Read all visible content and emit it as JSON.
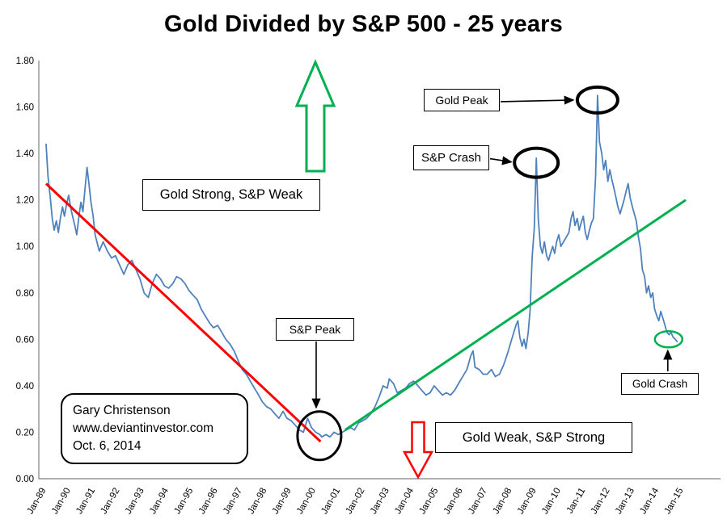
{
  "chart_data": {
    "type": "line",
    "title": "Gold Divided by S&P 500 - 25 years",
    "xlabel": "",
    "ylabel": "",
    "grid": false,
    "legend": "none",
    "y_range": [
      0.0,
      1.8
    ],
    "y_tick_labels": [
      "0.00",
      "0.20",
      "0.40",
      "0.60",
      "0.80",
      "1.00",
      "1.20",
      "1.40",
      "1.60",
      "1.80"
    ],
    "x_tick_labels": [
      "Jan-89",
      "Jan-90",
      "Jan-91",
      "Jan-92",
      "Jan-93",
      "Jan-94",
      "Jan-95",
      "Jan-96",
      "Jan-97",
      "Jan-98",
      "Jan-99",
      "Jan-00",
      "Jan-01",
      "Jan-02",
      "Jan-03",
      "Jan-04",
      "Jan-05",
      "Jan-06",
      "Jan-07",
      "Jan-08",
      "Jan-09",
      "Jan-10",
      "Jan-11",
      "Jan-12",
      "Jan-13",
      "Jan-14",
      "Jan-15"
    ],
    "x_range_years": [
      1989,
      2015
    ],
    "colors": {
      "series": "#4F81BD",
      "down_trend": "#FF0000",
      "up_trend": "#00B050",
      "up_arrow": "#00B050",
      "down_arrow": "#FF0000",
      "annotation": "#000000"
    },
    "series": [
      {
        "name": "Gold / S&P 500 ratio",
        "color": "#4F81BD",
        "points": [
          [
            1989.0,
            1.44
          ],
          [
            1989.08,
            1.3
          ],
          [
            1989.17,
            1.21
          ],
          [
            1989.25,
            1.12
          ],
          [
            1989.33,
            1.07
          ],
          [
            1989.42,
            1.11
          ],
          [
            1989.5,
            1.06
          ],
          [
            1989.58,
            1.12
          ],
          [
            1989.67,
            1.17
          ],
          [
            1989.75,
            1.13
          ],
          [
            1989.83,
            1.18
          ],
          [
            1989.92,
            1.22
          ],
          [
            1990.0,
            1.17
          ],
          [
            1990.08,
            1.13
          ],
          [
            1990.17,
            1.09
          ],
          [
            1990.25,
            1.05
          ],
          [
            1990.33,
            1.12
          ],
          [
            1990.42,
            1.19
          ],
          [
            1990.5,
            1.15
          ],
          [
            1990.58,
            1.24
          ],
          [
            1990.67,
            1.34
          ],
          [
            1990.75,
            1.27
          ],
          [
            1990.83,
            1.19
          ],
          [
            1990.92,
            1.13
          ],
          [
            1991.0,
            1.05
          ],
          [
            1991.17,
            0.98
          ],
          [
            1991.33,
            1.02
          ],
          [
            1991.5,
            0.98
          ],
          [
            1991.67,
            0.95
          ],
          [
            1991.83,
            0.96
          ],
          [
            1992.0,
            0.92
          ],
          [
            1992.17,
            0.88
          ],
          [
            1992.33,
            0.92
          ],
          [
            1992.5,
            0.94
          ],
          [
            1992.67,
            0.9
          ],
          [
            1992.83,
            0.86
          ],
          [
            1993.0,
            0.8
          ],
          [
            1993.17,
            0.78
          ],
          [
            1993.33,
            0.84
          ],
          [
            1993.5,
            0.88
          ],
          [
            1993.67,
            0.86
          ],
          [
            1993.83,
            0.83
          ],
          [
            1994.0,
            0.82
          ],
          [
            1994.17,
            0.84
          ],
          [
            1994.33,
            0.87
          ],
          [
            1994.5,
            0.86
          ],
          [
            1994.67,
            0.84
          ],
          [
            1994.83,
            0.81
          ],
          [
            1995.0,
            0.79
          ],
          [
            1995.17,
            0.77
          ],
          [
            1995.33,
            0.73
          ],
          [
            1995.5,
            0.7
          ],
          [
            1995.67,
            0.67
          ],
          [
            1995.83,
            0.65
          ],
          [
            1996.0,
            0.66
          ],
          [
            1996.17,
            0.63
          ],
          [
            1996.33,
            0.6
          ],
          [
            1996.5,
            0.58
          ],
          [
            1996.67,
            0.55
          ],
          [
            1996.83,
            0.51
          ],
          [
            1997.0,
            0.47
          ],
          [
            1997.17,
            0.45
          ],
          [
            1997.33,
            0.42
          ],
          [
            1997.5,
            0.39
          ],
          [
            1997.67,
            0.36
          ],
          [
            1997.83,
            0.33
          ],
          [
            1998.0,
            0.31
          ],
          [
            1998.17,
            0.3
          ],
          [
            1998.33,
            0.28
          ],
          [
            1998.5,
            0.26
          ],
          [
            1998.67,
            0.29
          ],
          [
            1998.83,
            0.26
          ],
          [
            1999.0,
            0.25
          ],
          [
            1999.17,
            0.23
          ],
          [
            1999.33,
            0.21
          ],
          [
            1999.5,
            0.2
          ],
          [
            1999.67,
            0.26
          ],
          [
            1999.83,
            0.22
          ],
          [
            2000.0,
            0.2
          ],
          [
            2000.17,
            0.19
          ],
          [
            2000.25,
            0.18
          ],
          [
            2000.42,
            0.19
          ],
          [
            2000.58,
            0.18
          ],
          [
            2000.75,
            0.2
          ],
          [
            2000.92,
            0.19
          ],
          [
            2001.08,
            0.2
          ],
          [
            2001.25,
            0.21
          ],
          [
            2001.42,
            0.22
          ],
          [
            2001.58,
            0.21
          ],
          [
            2001.75,
            0.24
          ],
          [
            2001.92,
            0.25
          ],
          [
            2002.08,
            0.26
          ],
          [
            2002.25,
            0.28
          ],
          [
            2002.42,
            0.31
          ],
          [
            2002.58,
            0.35
          ],
          [
            2002.75,
            0.4
          ],
          [
            2002.92,
            0.39
          ],
          [
            2003.0,
            0.43
          ],
          [
            2003.17,
            0.41
          ],
          [
            2003.33,
            0.37
          ],
          [
            2003.5,
            0.38
          ],
          [
            2003.67,
            0.39
          ],
          [
            2003.83,
            0.41
          ],
          [
            2004.0,
            0.42
          ],
          [
            2004.17,
            0.4
          ],
          [
            2004.33,
            0.38
          ],
          [
            2004.5,
            0.36
          ],
          [
            2004.67,
            0.37
          ],
          [
            2004.83,
            0.4
          ],
          [
            2005.0,
            0.38
          ],
          [
            2005.17,
            0.36
          ],
          [
            2005.33,
            0.37
          ],
          [
            2005.5,
            0.36
          ],
          [
            2005.67,
            0.38
          ],
          [
            2005.83,
            0.41
          ],
          [
            2006.0,
            0.44
          ],
          [
            2006.17,
            0.47
          ],
          [
            2006.33,
            0.53
          ],
          [
            2006.42,
            0.55
          ],
          [
            2006.5,
            0.48
          ],
          [
            2006.67,
            0.47
          ],
          [
            2006.83,
            0.45
          ],
          [
            2007.0,
            0.45
          ],
          [
            2007.17,
            0.47
          ],
          [
            2007.33,
            0.44
          ],
          [
            2007.5,
            0.45
          ],
          [
            2007.67,
            0.49
          ],
          [
            2007.83,
            0.54
          ],
          [
            2008.0,
            0.6
          ],
          [
            2008.17,
            0.66
          ],
          [
            2008.25,
            0.68
          ],
          [
            2008.33,
            0.61
          ],
          [
            2008.42,
            0.57
          ],
          [
            2008.5,
            0.6
          ],
          [
            2008.58,
            0.56
          ],
          [
            2008.67,
            0.63
          ],
          [
            2008.75,
            0.73
          ],
          [
            2008.83,
            0.95
          ],
          [
            2008.92,
            1.08
          ],
          [
            2009.0,
            1.38
          ],
          [
            2009.08,
            1.12
          ],
          [
            2009.17,
            1.0
          ],
          [
            2009.25,
            0.97
          ],
          [
            2009.33,
            1.02
          ],
          [
            2009.42,
            0.96
          ],
          [
            2009.5,
            0.94
          ],
          [
            2009.58,
            0.97
          ],
          [
            2009.67,
            1.0
          ],
          [
            2009.75,
            0.97
          ],
          [
            2009.83,
            1.02
          ],
          [
            2009.92,
            1.05
          ],
          [
            2010.0,
            1.0
          ],
          [
            2010.17,
            1.03
          ],
          [
            2010.33,
            1.06
          ],
          [
            2010.42,
            1.12
          ],
          [
            2010.5,
            1.15
          ],
          [
            2010.58,
            1.09
          ],
          [
            2010.67,
            1.12
          ],
          [
            2010.75,
            1.07
          ],
          [
            2010.83,
            1.1
          ],
          [
            2010.92,
            1.13
          ],
          [
            2011.0,
            1.06
          ],
          [
            2011.08,
            1.03
          ],
          [
            2011.17,
            1.07
          ],
          [
            2011.25,
            1.1
          ],
          [
            2011.33,
            1.12
          ],
          [
            2011.42,
            1.3
          ],
          [
            2011.5,
            1.65
          ],
          [
            2011.58,
            1.45
          ],
          [
            2011.67,
            1.4
          ],
          [
            2011.75,
            1.33
          ],
          [
            2011.83,
            1.37
          ],
          [
            2011.92,
            1.28
          ],
          [
            2012.0,
            1.33
          ],
          [
            2012.08,
            1.29
          ],
          [
            2012.17,
            1.25
          ],
          [
            2012.25,
            1.21
          ],
          [
            2012.33,
            1.17
          ],
          [
            2012.42,
            1.14
          ],
          [
            2012.5,
            1.17
          ],
          [
            2012.58,
            1.2
          ],
          [
            2012.67,
            1.24
          ],
          [
            2012.75,
            1.27
          ],
          [
            2012.83,
            1.21
          ],
          [
            2012.92,
            1.17
          ],
          [
            2013.0,
            1.14
          ],
          [
            2013.08,
            1.11
          ],
          [
            2013.17,
            1.04
          ],
          [
            2013.25,
            0.99
          ],
          [
            2013.33,
            0.9
          ],
          [
            2013.42,
            0.87
          ],
          [
            2013.5,
            0.8
          ],
          [
            2013.58,
            0.83
          ],
          [
            2013.67,
            0.78
          ],
          [
            2013.75,
            0.8
          ],
          [
            2013.83,
            0.73
          ],
          [
            2013.92,
            0.7
          ],
          [
            2014.0,
            0.68
          ],
          [
            2014.08,
            0.72
          ],
          [
            2014.17,
            0.69
          ],
          [
            2014.25,
            0.66
          ],
          [
            2014.33,
            0.63
          ],
          [
            2014.42,
            0.62
          ],
          [
            2014.5,
            0.63
          ],
          [
            2014.58,
            0.61
          ],
          [
            2014.67,
            0.6
          ],
          [
            2014.75,
            0.59
          ]
        ]
      }
    ],
    "trendlines": [
      {
        "name": "downtrend",
        "color": "#FF0000",
        "x": [
          1989.0,
          2000.2
        ],
        "y": [
          1.27,
          0.16
        ]
      },
      {
        "name": "uptrend",
        "color": "#00B050",
        "x": [
          2001.2,
          2015.1
        ],
        "y": [
          0.21,
          1.2
        ]
      }
    ],
    "annotations": {
      "ellipses": [
        {
          "name": "sp-peak-circle",
          "year": 2000.15,
          "value": 0.185,
          "rx": 27,
          "ry": 30,
          "stroke": 3,
          "color": "#000000"
        },
        {
          "name": "sp-crash-circle",
          "year": 2009.0,
          "value": 1.36,
          "rx": 27,
          "ry": 18,
          "stroke": 4,
          "color": "#000000"
        },
        {
          "name": "gold-peak-circle",
          "year": 2011.5,
          "value": 1.63,
          "rx": 25,
          "ry": 16,
          "stroke": 4,
          "color": "#000000"
        },
        {
          "name": "gold-crash-ellipse",
          "year": 2014.4,
          "value": 0.6,
          "rx": 17,
          "ry": 10,
          "stroke": 2.5,
          "color": "#00B050"
        }
      ],
      "labels": {
        "gold_strong": "Gold Strong, S&P Weak",
        "gold_weak": "Gold Weak, S&P Strong",
        "sp_crash": "S&P Crash",
        "gold_peak": "Gold Peak",
        "sp_peak": "S&P Peak",
        "gold_crash": "Gold Crash"
      },
      "credit": {
        "line1": "Gary Christenson",
        "line2": "www.deviantinvestor.com",
        "line3": "Oct. 6, 2014"
      }
    }
  }
}
